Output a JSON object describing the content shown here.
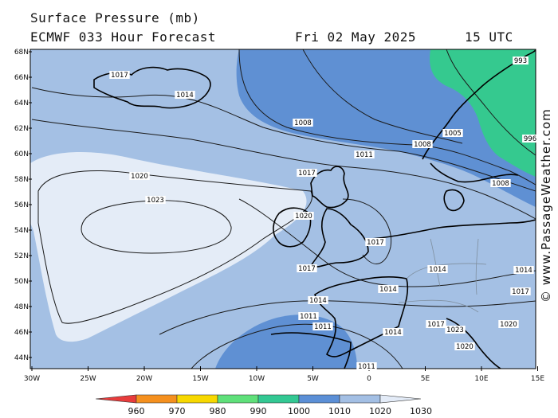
{
  "header": {
    "line1": "Surface Pressure (mb)",
    "line2_left": "ECMWF 033 Hour Forecast",
    "date": "Fri 02 May 2025",
    "time": "15 UTC"
  },
  "credit": "© www.PassageWeather.com",
  "axes": {
    "lat_labels": [
      "68N",
      "66N",
      "64N",
      "62N",
      "60N",
      "58N",
      "56N",
      "54N",
      "52N",
      "50N",
      "48N",
      "46N",
      "44N"
    ],
    "lon_labels": [
      "30W",
      "25W",
      "20W",
      "15W",
      "10W",
      "5W",
      "0",
      "5E",
      "10E",
      "15E"
    ]
  },
  "isobar_labels": [
    "1017",
    "1014",
    "1008",
    "1011",
    "1005",
    "1008",
    "1017",
    "1020",
    "1023",
    "1020",
    "1017",
    "1017",
    "1014",
    "1014",
    "1014",
    "1011",
    "1011",
    "1014",
    "1017",
    "1020",
    "1023",
    "1008",
    "1011",
    "993",
    "996",
    "1014",
    "1017",
    "1020"
  ],
  "colorbar": {
    "labels": [
      "960",
      "970",
      "980",
      "990",
      "1000",
      "1010",
      "1020",
      "1030"
    ],
    "colors": [
      "#e83c3c",
      "#f5901e",
      "#f7d800",
      "#5fe07a",
      "#33c893",
      "#5b8fd6",
      "#a3bfe4",
      "#e3ebf7"
    ]
  },
  "colors": {
    "pressure_1020_plus": "#e4ecf7",
    "pressure_1010_1020": "#a4c0e4",
    "pressure_1000_1010": "#5f90d3",
    "pressure_990_1000": "#35c98f",
    "land_outline": "#000000",
    "border": "#7f8f9f"
  }
}
